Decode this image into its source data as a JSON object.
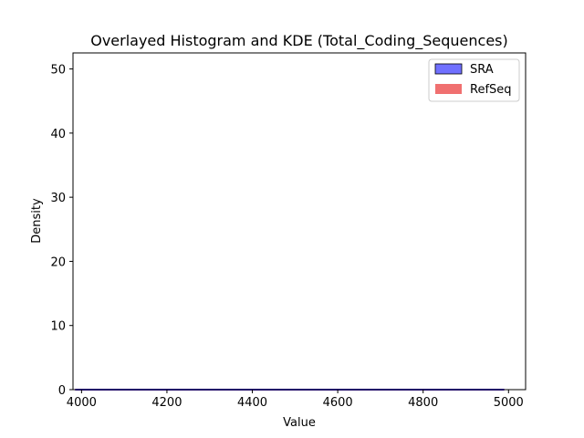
{
  "chart_data": {
    "type": "histogram",
    "title": "Overlayed Histogram and KDE (Total_Coding_Sequences)",
    "xlabel": "Value",
    "ylabel": "Density",
    "xlim": [
      3980,
      5040
    ],
    "ylim": [
      0,
      52.5
    ],
    "xticks": [
      4000,
      4200,
      4400,
      4600,
      4800,
      5000
    ],
    "yticks": [
      0,
      10,
      20,
      30,
      40,
      50
    ],
    "grid": false,
    "legend_position": "top-right",
    "series": [
      {
        "name": "SRA",
        "kind": "histogram+kde",
        "color": "#0000ff",
        "fill_alpha": 0.55,
        "x": [
          3985,
          4200,
          4400,
          4600,
          4800,
          4990
        ],
        "y": [
          0,
          0,
          0,
          0,
          0,
          0
        ]
      },
      {
        "name": "RefSeq",
        "kind": "histogram+kde",
        "color": "#ff0000",
        "fill_alpha": 0.6,
        "x": [
          3985,
          4200,
          4400,
          4600,
          4800,
          4990
        ],
        "y": [
          0,
          0,
          0,
          0,
          0,
          0
        ]
      }
    ]
  }
}
